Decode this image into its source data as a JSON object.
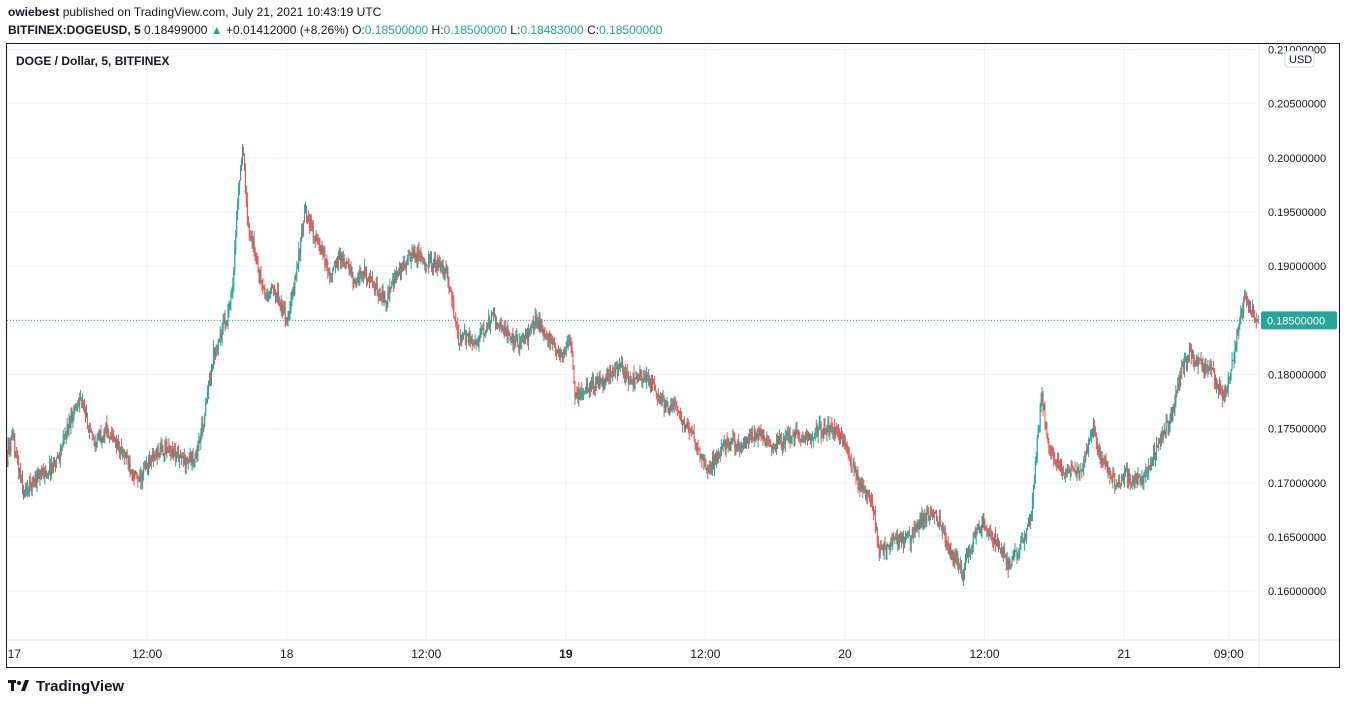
{
  "header": {
    "user": "owiebest",
    "published_text": "published on TradingView.com, July 21, 2021 10:43:19 UTC",
    "symbol": "BITFINEX:DOGEUSD, 5",
    "last": "0.18499000",
    "change_icon": "triangle-up-icon",
    "change": "+0.01412000 (+8.26%)",
    "o_label": "O:",
    "o": "0.18500000",
    "h_label": "H:",
    "h": "0.18500000",
    "l_label": "L:",
    "l": "0.18483000",
    "c_label": "C:",
    "c": "0.18500000"
  },
  "legend_title": "DOGE / Dollar, 5, BITFINEX",
  "currency_badge": "USD",
  "footer": {
    "brand": "TradingView",
    "icon": "tradingview-logo-icon"
  },
  "colors": {
    "up": "#26a69a",
    "down": "#ef5350",
    "grid": "#f0f3fa",
    "last_price": "#26a69a"
  },
  "chart_data": {
    "type": "candlestick",
    "title": "DOGE / Dollar, 5, BITFINEX",
    "ylim": [
      0.1555,
      0.2105
    ],
    "y_ticks": [
      "0.16000000",
      "0.16500000",
      "0.17000000",
      "0.17500000",
      "0.18000000",
      "0.18500000",
      "0.19000000",
      "0.19500000",
      "0.20000000",
      "0.20500000",
      "0.21000000"
    ],
    "x_ticks": [
      {
        "label": "17",
        "t": 0,
        "bold": false
      },
      {
        "label": "12:00",
        "t": 12,
        "bold": false
      },
      {
        "label": "18",
        "t": 24,
        "bold": false
      },
      {
        "label": "12:00",
        "t": 36,
        "bold": false
      },
      {
        "label": "19",
        "t": 48,
        "bold": true
      },
      {
        "label": "12:00",
        "t": 60,
        "bold": false
      },
      {
        "label": "20",
        "t": 72,
        "bold": false
      },
      {
        "label": "12:00",
        "t": 84,
        "bold": false
      },
      {
        "label": "21",
        "t": 96,
        "bold": false
      },
      {
        "label": "09:00",
        "t": 105,
        "bold": false
      }
    ],
    "t_range": [
      -0.05,
      107.6
    ],
    "last_price": 0.185,
    "last_price_label": "0.18500000",
    "x_unit": "hours from Jul 17 00:00 UTC",
    "price_path": [
      [
        -0.05,
        0.1725
      ],
      [
        0.5,
        0.174
      ],
      [
        1.5,
        0.169
      ],
      [
        2.5,
        0.1705
      ],
      [
        3.5,
        0.171
      ],
      [
        4.5,
        0.1725
      ],
      [
        5.5,
        0.176
      ],
      [
        6.3,
        0.178
      ],
      [
        7.5,
        0.1735
      ],
      [
        8.5,
        0.175
      ],
      [
        9.5,
        0.1735
      ],
      [
        10.5,
        0.172
      ],
      [
        11.3,
        0.17
      ],
      [
        12.3,
        0.172
      ],
      [
        13.3,
        0.173
      ],
      [
        14.2,
        0.173
      ],
      [
        15.2,
        0.172
      ],
      [
        16.3,
        0.1725
      ],
      [
        17.0,
        0.176
      ],
      [
        17.8,
        0.182
      ],
      [
        18.5,
        0.184
      ],
      [
        19.1,
        0.186
      ],
      [
        19.5,
        0.189
      ],
      [
        19.9,
        0.197
      ],
      [
        20.3,
        0.201
      ],
      [
        20.7,
        0.194
      ],
      [
        21.2,
        0.192
      ],
      [
        21.8,
        0.189
      ],
      [
        22.3,
        0.187
      ],
      [
        23.0,
        0.188
      ],
      [
        23.7,
        0.186
      ],
      [
        24.2,
        0.185
      ],
      [
        24.7,
        0.188
      ],
      [
        25.1,
        0.191
      ],
      [
        25.7,
        0.195
      ],
      [
        26.4,
        0.193
      ],
      [
        27.2,
        0.191
      ],
      [
        27.9,
        0.189
      ],
      [
        28.6,
        0.191
      ],
      [
        29.3,
        0.19
      ],
      [
        30.0,
        0.1885
      ],
      [
        30.7,
        0.1895
      ],
      [
        31.6,
        0.188
      ],
      [
        32.6,
        0.187
      ],
      [
        33.5,
        0.189
      ],
      [
        34.4,
        0.1905
      ],
      [
        35.2,
        0.191
      ],
      [
        36.1,
        0.1905
      ],
      [
        37.0,
        0.19
      ],
      [
        37.8,
        0.1895
      ],
      [
        38.4,
        0.186
      ],
      [
        38.9,
        0.183
      ],
      [
        39.5,
        0.1835
      ],
      [
        40.3,
        0.183
      ],
      [
        41.1,
        0.184
      ],
      [
        41.8,
        0.1855
      ],
      [
        42.5,
        0.1845
      ],
      [
        43.2,
        0.1835
      ],
      [
        44.0,
        0.183
      ],
      [
        44.8,
        0.1835
      ],
      [
        45.5,
        0.185
      ],
      [
        46.2,
        0.184
      ],
      [
        47.0,
        0.1825
      ],
      [
        47.8,
        0.182
      ],
      [
        48.5,
        0.183
      ],
      [
        48.9,
        0.178
      ],
      [
        49.5,
        0.1785
      ],
      [
        50.3,
        0.179
      ],
      [
        51.1,
        0.1795
      ],
      [
        51.9,
        0.18
      ],
      [
        52.8,
        0.1805
      ],
      [
        53.6,
        0.1795
      ],
      [
        54.4,
        0.18
      ],
      [
        55.2,
        0.1795
      ],
      [
        56.0,
        0.178
      ],
      [
        56.8,
        0.177
      ],
      [
        57.6,
        0.177
      ],
      [
        58.3,
        0.175
      ],
      [
        59.0,
        0.1745
      ],
      [
        59.6,
        0.1725
      ],
      [
        60.2,
        0.1715
      ],
      [
        60.9,
        0.172
      ],
      [
        61.6,
        0.1735
      ],
      [
        62.3,
        0.174
      ],
      [
        63.0,
        0.1735
      ],
      [
        63.8,
        0.174
      ],
      [
        64.5,
        0.1745
      ],
      [
        65.3,
        0.174
      ],
      [
        66.1,
        0.1735
      ],
      [
        66.9,
        0.174
      ],
      [
        67.7,
        0.1745
      ],
      [
        68.5,
        0.174
      ],
      [
        69.3,
        0.1745
      ],
      [
        70.1,
        0.175
      ],
      [
        70.9,
        0.175
      ],
      [
        71.7,
        0.1745
      ],
      [
        72.4,
        0.1725
      ],
      [
        73.1,
        0.1705
      ],
      [
        73.8,
        0.169
      ],
      [
        74.5,
        0.168
      ],
      [
        75.0,
        0.1635
      ],
      [
        75.6,
        0.164
      ],
      [
        76.3,
        0.165
      ],
      [
        77.0,
        0.1645
      ],
      [
        77.8,
        0.165
      ],
      [
        78.6,
        0.1665
      ],
      [
        79.4,
        0.167
      ],
      [
        80.2,
        0.1665
      ],
      [
        81.0,
        0.164
      ],
      [
        81.7,
        0.163
      ],
      [
        82.2,
        0.1615
      ],
      [
        82.8,
        0.164
      ],
      [
        83.4,
        0.1655
      ],
      [
        84.1,
        0.166
      ],
      [
        84.8,
        0.165
      ],
      [
        85.5,
        0.164
      ],
      [
        86.1,
        0.1625
      ],
      [
        86.8,
        0.1635
      ],
      [
        87.5,
        0.165
      ],
      [
        88.1,
        0.167
      ],
      [
        88.6,
        0.1735
      ],
      [
        89.0,
        0.178
      ],
      [
        89.5,
        0.174
      ],
      [
        90.1,
        0.172
      ],
      [
        90.8,
        0.171
      ],
      [
        91.5,
        0.1715
      ],
      [
        92.2,
        0.171
      ],
      [
        92.9,
        0.173
      ],
      [
        93.5,
        0.175
      ],
      [
        94.1,
        0.172
      ],
      [
        94.8,
        0.171
      ],
      [
        95.5,
        0.1695
      ],
      [
        96.2,
        0.171
      ],
      [
        97.0,
        0.17
      ],
      [
        97.8,
        0.1705
      ],
      [
        98.6,
        0.1725
      ],
      [
        99.4,
        0.1745
      ],
      [
        100.2,
        0.176
      ],
      [
        100.9,
        0.18
      ],
      [
        101.7,
        0.182
      ],
      [
        102.4,
        0.181
      ],
      [
        103.1,
        0.1805
      ],
      [
        103.8,
        0.18
      ],
      [
        104.5,
        0.178
      ],
      [
        105.0,
        0.179
      ],
      [
        105.5,
        0.182
      ],
      [
        106.0,
        0.185
      ],
      [
        106.5,
        0.187
      ],
      [
        107.0,
        0.186
      ],
      [
        107.6,
        0.185
      ]
    ]
  }
}
